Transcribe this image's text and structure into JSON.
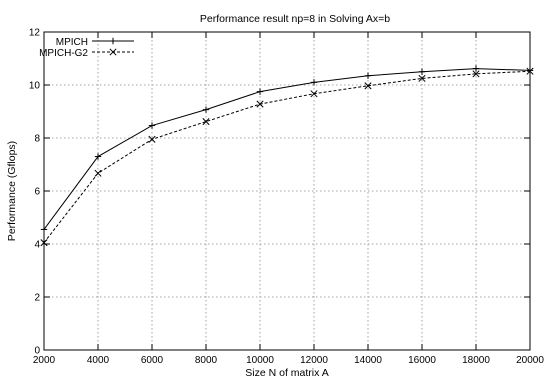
{
  "chart_data": {
    "type": "line",
    "title": "Performance result np=8 in Solving Ax=b",
    "xlabel": "Size N of matrix A",
    "ylabel": "Performance (Gflops)",
    "xlim": [
      2000,
      20000
    ],
    "ylim": [
      0,
      12
    ],
    "x_ticks": [
      2000,
      4000,
      6000,
      8000,
      10000,
      12000,
      14000,
      16000,
      18000,
      20000
    ],
    "y_ticks": [
      0,
      2,
      4,
      6,
      8,
      10,
      12
    ],
    "grid": true,
    "legend_position": "top-left",
    "x": [
      2000,
      4000,
      6000,
      8000,
      10000,
      12000,
      14000,
      16000,
      18000,
      20000
    ],
    "series": [
      {
        "name": "MPICH",
        "marker": "plus",
        "line_style": "solid",
        "color": "#000000",
        "values": [
          4.55,
          7.3,
          8.47,
          9.07,
          9.75,
          10.1,
          10.35,
          10.5,
          10.62,
          10.55
        ]
      },
      {
        "name": "MPICH-G2",
        "marker": "cross",
        "line_style": "dashed",
        "color": "#000000",
        "values": [
          4.05,
          6.67,
          7.95,
          8.62,
          9.28,
          9.67,
          9.97,
          10.25,
          10.42,
          10.52
        ]
      }
    ]
  }
}
